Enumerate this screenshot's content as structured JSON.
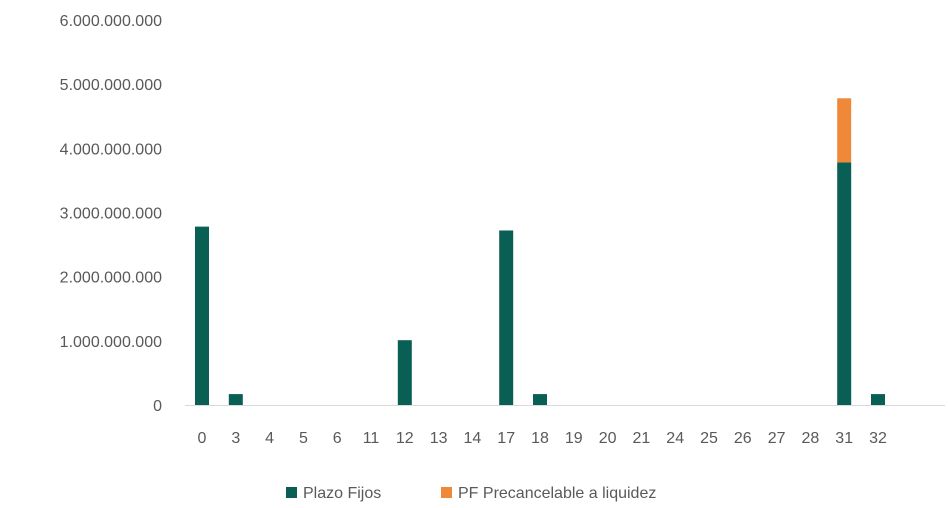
{
  "chart_data": {
    "type": "bar",
    "stacked": true,
    "categories": [
      "0",
      "3",
      "4",
      "5",
      "6",
      "11",
      "12",
      "13",
      "14",
      "17",
      "18",
      "19",
      "20",
      "21",
      "24",
      "25",
      "26",
      "27",
      "28",
      "31",
      "32"
    ],
    "series": [
      {
        "name": "Plazo Fijos",
        "color": "#0a5f55",
        "values": [
          2780000000,
          170000000,
          0,
          0,
          0,
          0,
          1010000000,
          0,
          0,
          2720000000,
          170000000,
          0,
          0,
          0,
          0,
          0,
          0,
          0,
          0,
          3780000000,
          170000000
        ]
      },
      {
        "name": "PF Precancelable a liquidez",
        "color": "#f0883a",
        "values": [
          0,
          0,
          0,
          0,
          0,
          0,
          0,
          0,
          0,
          0,
          0,
          0,
          0,
          0,
          0,
          0,
          0,
          0,
          0,
          1000000000,
          0
        ]
      }
    ],
    "yticks": [
      "0",
      "1.000.000.000",
      "2.000.000.000",
      "3.000.000.000",
      "4.000.000.000",
      "5.000.000.000",
      "6.000.000.000"
    ],
    "ylim": [
      0,
      6000000000
    ],
    "grid": false,
    "legend_position": "bottom"
  }
}
